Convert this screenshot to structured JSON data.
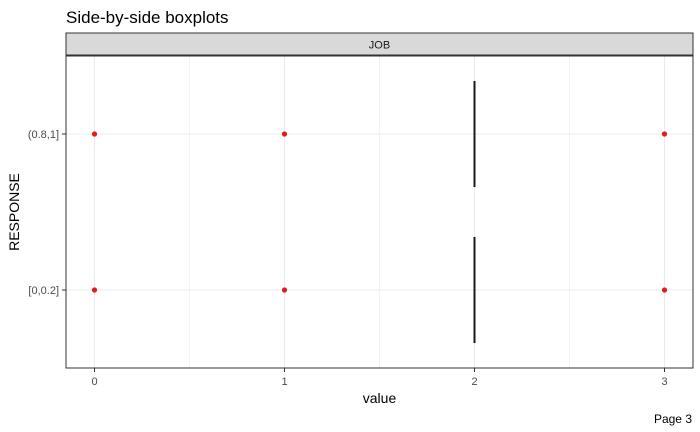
{
  "chart_data": {
    "type": "boxplot",
    "title": "Side-by-side boxplots",
    "facet_label": "JOB",
    "xlabel": "value",
    "ylabel": "RESPONSE",
    "x_ticks": [
      "0",
      "1",
      "2",
      "3"
    ],
    "xlim": [
      -0.15,
      3.15
    ],
    "categories": [
      "[0,0.2]",
      "(0.8,1]"
    ],
    "grid": true,
    "legend": "none",
    "series": [
      {
        "category": "[0,0.2]",
        "median": 2,
        "q1": 2,
        "q3": 2,
        "whisker_low": 2,
        "whisker_high": 2,
        "outliers": [
          0,
          1,
          3
        ]
      },
      {
        "category": "(0.8,1]",
        "median": 2,
        "q1": 2,
        "q3": 2,
        "whisker_low": 2,
        "whisker_high": 2,
        "outliers": [
          0,
          1,
          3
        ]
      }
    ],
    "colors": {
      "outlier": "#e41a1c",
      "box": "#1a1a1a",
      "strip_fill": "#d9d9d9",
      "grid": "#ebebeb",
      "panel_border": "#333333"
    }
  },
  "footer": {
    "page_label": "Page 3"
  }
}
